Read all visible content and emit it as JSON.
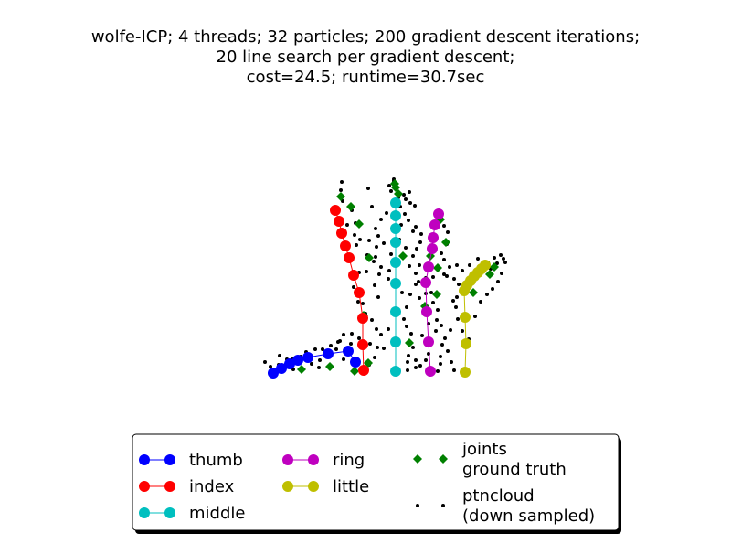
{
  "title_lines": [
    "wolfe-ICP; 4 threads; 32 particles; 200 gradient descent iterations;",
    "20 line search per gradient descent;",
    "cost=24.5; runtime=30.7sec"
  ],
  "chart_data": {
    "type": "scatter",
    "title": "wolfe-ICP; 4 threads; 32 particles; 200 gradient descent iterations; 20 line search per gradient descent; cost=24.5; runtime=30.7sec",
    "xlabel": "",
    "ylabel": "",
    "axes_visible": false,
    "grid": false,
    "legend_placement": "bottom-center",
    "legend_ncol": 3,
    "series": [
      {
        "name": "thumb",
        "color": "#0000ff",
        "marker": "circle",
        "line": true,
        "points": [
          [
            299,
            408
          ],
          [
            308,
            403
          ],
          [
            317,
            398
          ],
          [
            326,
            394
          ],
          [
            337,
            391
          ],
          [
            359,
            387
          ],
          [
            381,
            384
          ],
          [
            389,
            396
          ]
        ]
      },
      {
        "name": "index",
        "color": "#ff0000",
        "marker": "circle",
        "line": true,
        "points": [
          [
            367,
            230
          ],
          [
            371,
            242
          ],
          [
            374,
            255
          ],
          [
            378,
            269
          ],
          [
            382,
            282
          ],
          [
            387,
            301
          ],
          [
            393,
            320
          ],
          [
            397,
            348
          ],
          [
            397,
            377
          ],
          [
            398,
            405
          ]
        ]
      },
      {
        "name": "middle",
        "color": "#00bfbf",
        "marker": "circle",
        "line": true,
        "points": [
          [
            433,
            222
          ],
          [
            433,
            236
          ],
          [
            433,
            250
          ],
          [
            433,
            265
          ],
          [
            433,
            287
          ],
          [
            433,
            310
          ],
          [
            433,
            341
          ],
          [
            433,
            374
          ],
          [
            433,
            406
          ]
        ]
      },
      {
        "name": "ring",
        "color": "#bf00bf",
        "marker": "circle",
        "line": true,
        "points": [
          [
            480,
            234
          ],
          [
            476,
            246
          ],
          [
            474,
            260
          ],
          [
            473,
            272
          ],
          [
            469,
            292
          ],
          [
            466,
            309
          ],
          [
            467,
            341
          ],
          [
            469,
            374
          ],
          [
            471,
            406
          ]
        ]
      },
      {
        "name": "little",
        "color": "#bfbf00",
        "marker": "circle",
        "line": true,
        "points": [
          [
            531,
            290
          ],
          [
            527,
            294
          ],
          [
            523,
            298
          ],
          [
            519,
            302
          ],
          [
            515,
            307
          ],
          [
            511,
            312
          ],
          [
            508,
            318
          ],
          [
            509,
            347
          ],
          [
            510,
            376
          ],
          [
            509,
            407
          ]
        ]
      },
      {
        "name": "joints\nground truth",
        "color": "#008000",
        "marker": "diamond",
        "line": false,
        "points": [
          [
            298,
            409
          ],
          [
            330,
            404
          ],
          [
            361,
            401
          ],
          [
            388,
            406
          ],
          [
            403,
            397
          ],
          [
            373,
            215
          ],
          [
            384,
            226
          ],
          [
            393,
            245
          ],
          [
            404,
            282
          ],
          [
            398,
            345
          ],
          [
            432,
            201
          ],
          [
            436,
            212
          ],
          [
            441,
            280
          ],
          [
            448,
            375
          ],
          [
            433,
            205
          ],
          [
            482,
            240
          ],
          [
            488,
            265
          ],
          [
            479,
            293
          ],
          [
            471,
            280
          ],
          [
            536,
            300
          ],
          [
            541,
            292
          ],
          [
            518,
            320
          ],
          [
            511,
            314
          ],
          [
            465,
            335
          ],
          [
            478,
            322
          ]
        ]
      },
      {
        "name": "ptncloud\n(down sampled)",
        "color": "#000000",
        "marker": "dot",
        "line": false,
        "points": [
          [
            290,
            396
          ],
          [
            296,
            401
          ],
          [
            305,
            399
          ],
          [
            314,
            393
          ],
          [
            321,
            392
          ],
          [
            329,
            390
          ],
          [
            335,
            385
          ],
          [
            345,
            382
          ],
          [
            350,
            394
          ],
          [
            353,
            382
          ],
          [
            368,
            382
          ],
          [
            372,
            373
          ],
          [
            376,
            393
          ],
          [
            384,
            376
          ],
          [
            393,
            370
          ],
          [
            385,
            365
          ],
          [
            405,
            376
          ],
          [
            413,
            380
          ],
          [
            404,
            399
          ],
          [
            410,
            391
          ],
          [
            420,
            381
          ],
          [
            349,
            402
          ],
          [
            341,
            398
          ],
          [
            329,
            396
          ],
          [
            374,
            199
          ],
          [
            373,
            208
          ],
          [
            375,
            220
          ],
          [
            385,
            230
          ],
          [
            380,
            246
          ],
          [
            389,
            244
          ],
          [
            388,
            257
          ],
          [
            390,
            268
          ],
          [
            394,
            262
          ],
          [
            404,
            263
          ],
          [
            412,
            270
          ],
          [
            411,
            281
          ],
          [
            415,
            300
          ],
          [
            409,
            286
          ],
          [
            401,
            297
          ],
          [
            393,
            298
          ],
          [
            387,
            314
          ],
          [
            392,
            330
          ],
          [
            397,
            332
          ],
          [
            400,
            343
          ],
          [
            407,
            350
          ],
          [
            412,
            360
          ],
          [
            414,
            325
          ],
          [
            410,
            312
          ],
          [
            417,
            292
          ],
          [
            426,
            296
          ],
          [
            425,
            305
          ],
          [
            432,
            311
          ],
          [
            440,
            320
          ],
          [
            445,
            336
          ],
          [
            442,
            349
          ],
          [
            445,
            357
          ],
          [
            450,
            365
          ],
          [
            452,
            380
          ],
          [
            447,
            389
          ],
          [
            455,
            394
          ],
          [
            460,
            400
          ],
          [
            455,
            402
          ],
          [
            446,
            405
          ],
          [
            428,
            209
          ],
          [
            436,
            216
          ],
          [
            444,
            218
          ],
          [
            449,
            222
          ],
          [
            454,
            225
          ],
          [
            438,
            226
          ],
          [
            443,
            234
          ],
          [
            447,
            241
          ],
          [
            455,
            248
          ],
          [
            452,
            253
          ],
          [
            461,
            256
          ],
          [
            460,
            265
          ],
          [
            456,
            272
          ],
          [
            452,
            280
          ],
          [
            448,
            291
          ],
          [
            455,
            299
          ],
          [
            455,
            311
          ],
          [
            449,
            322
          ],
          [
            459,
            326
          ],
          [
            466,
            321
          ],
          [
            472,
            320
          ],
          [
            474,
            331
          ],
          [
            479,
            339
          ],
          [
            478,
            350
          ],
          [
            483,
            356
          ],
          [
            493,
            361
          ],
          [
            487,
            370
          ],
          [
            484,
            377
          ],
          [
            482,
            390
          ],
          [
            482,
            398
          ],
          [
            494,
            396
          ],
          [
            497,
            405
          ],
          [
            479,
            406
          ],
          [
            469,
            387
          ],
          [
            462,
            367
          ],
          [
            469,
            354
          ],
          [
            486,
            247
          ],
          [
            490,
            254
          ],
          [
            489,
            267
          ],
          [
            483,
            277
          ],
          [
            486,
            284
          ],
          [
            492,
            292
          ],
          [
            486,
            300
          ],
          [
            497,
            305
          ],
          [
            502,
            311
          ],
          [
            500,
            325
          ],
          [
            496,
            329
          ],
          [
            499,
            336
          ],
          [
            501,
            349
          ],
          [
            506,
            362
          ],
          [
            513,
            371
          ],
          [
            520,
            346
          ],
          [
            526,
            330
          ],
          [
            533,
            322
          ],
          [
            539,
            316
          ],
          [
            545,
            308
          ],
          [
            549,
            299
          ],
          [
            553,
            287
          ],
          [
            548,
            279
          ],
          [
            541,
            282
          ],
          [
            534,
            287
          ],
          [
            527,
            296
          ],
          [
            537,
            294
          ],
          [
            544,
            288
          ],
          [
            551,
            283
          ],
          [
            523,
            283
          ],
          [
            514,
            290
          ],
          [
            506,
            296
          ],
          [
            515,
            305
          ],
          [
            500,
            290
          ],
          [
            489,
            302
          ],
          [
            474,
            303
          ],
          [
            466,
            304
          ],
          [
            459,
            290
          ],
          [
            417,
            240
          ],
          [
            411,
            250
          ],
          [
            420,
            266
          ],
          [
            414,
            258
          ],
          [
            402,
            279
          ],
          [
            428,
            278
          ],
          [
            437,
            262
          ],
          [
            444,
            271
          ],
          [
            423,
            233
          ],
          [
            439,
            246
          ],
          [
            442,
            213
          ],
          [
            448,
            210
          ],
          [
            431,
            198
          ],
          [
            426,
            203
          ],
          [
            431,
            196
          ],
          [
            370,
            374
          ],
          [
            376,
            366
          ],
          [
            417,
            366
          ],
          [
            425,
            360
          ],
          [
            358,
            388
          ],
          [
            362,
            378
          ],
          [
            306,
            389
          ],
          [
            321,
            404
          ],
          [
            403,
            206
          ],
          [
            407,
            226
          ],
          [
            458,
            308
          ],
          [
            477,
            362
          ],
          [
            490,
            384
          ],
          [
            466,
            394
          ],
          [
            446,
            396
          ]
        ]
      }
    ]
  }
}
